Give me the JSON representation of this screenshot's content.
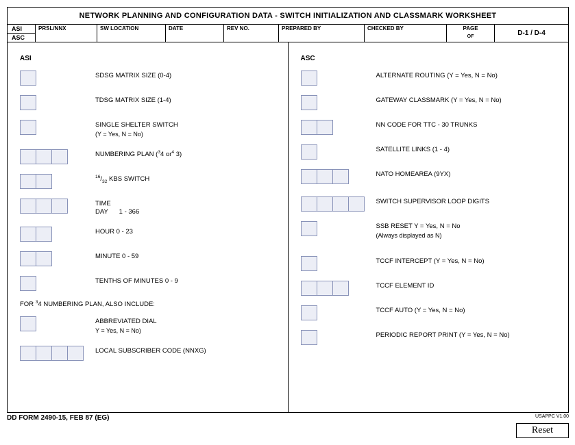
{
  "title": "NETWORK PLANNING AND CONFIGURATION DATA - SWITCH INITIALIZATION AND CLASSMARK WORKSHEET",
  "header": {
    "asi": "ASI",
    "asc": "ASC",
    "prsl": "PRSL/NNX",
    "swloc": "SW LOCATION",
    "date": "DATE",
    "rev": "REV NO.",
    "prep": "PREPARED BY",
    "chk": "CHECKED BY",
    "page": "PAGE",
    "of": "OF",
    "d14": "D-1 / D-4"
  },
  "left": {
    "head": "ASI",
    "rows": [
      {
        "boxes": 1,
        "label": "SDSG MATRIX SIZE (0-4)"
      },
      {
        "boxes": 1,
        "label": "TDSG MATRIX SIZE (1-4)"
      },
      {
        "boxes": 1,
        "label": "SINGLE SHELTER SWITCH",
        "sub": "(Y = Yes, N = No)"
      },
      {
        "boxes": 3,
        "label": "NUMBERING PLAN (³4 or⁴ 3)"
      },
      {
        "boxes": 2,
        "label": "¹⁶⁄₃₂ KBS SWITCH"
      },
      {
        "boxes": 3,
        "label": "TIME",
        "sub": "DAY      1 - 366",
        "pre": true
      },
      {
        "boxes": 2,
        "label": "HOUR      0 - 23"
      },
      {
        "boxes": 2,
        "label": "MINUTE   0 - 59"
      },
      {
        "boxes": 1,
        "label": "TENTHS OF MINUTES    0 - 9"
      }
    ],
    "subhead": "FOR ³4 NUMBERING PLAN, ALSO INCLUDE:",
    "rows2": [
      {
        "boxes": 1,
        "label": "ABBREVIATED DIAL",
        "sub": "Y = Yes, N = No)"
      },
      {
        "boxes": 4,
        "label": "LOCAL SUBSCRIBER CODE (NNXG)"
      }
    ]
  },
  "right": {
    "head": "ASC",
    "rows": [
      {
        "boxes": 1,
        "label": "ALTERNATE ROUTING (Y = Yes, N = No)"
      },
      {
        "boxes": 1,
        "label": "GATEWAY CLASSMARK (Y = Yes, N = No)"
      },
      {
        "boxes": 2,
        "label": "NN CODE FOR TTC - 30 TRUNKS"
      },
      {
        "boxes": 1,
        "label": "SATELLITE LINKS (1 - 4)"
      },
      {
        "boxes": 3,
        "label": "NATO HOMEAREA (9YX)"
      },
      {
        "boxes": 4,
        "label": "SWITCH SUPERVISOR LOOP DIGITS"
      },
      {
        "boxes": 1,
        "label": "SSB RESET Y = Yes, N = No",
        "sub": "(Always displayed as N)"
      },
      {
        "boxes": 1,
        "label": "TCCF INTERCEPT (Y = Yes, N = No)"
      },
      {
        "boxes": 3,
        "label": "TCCF ELEMENT ID"
      },
      {
        "boxes": 1,
        "label": "TCCF AUTO (Y = Yes, N = No)"
      },
      {
        "boxes": 1,
        "label": "PERIODIC REPORT PRINT (Y = Yes, N = No)"
      }
    ]
  },
  "footer": {
    "form": "DD FORM 2490-15, FEB 87 (EG)",
    "usappc": "USAPPC V1.00",
    "reset": "Reset"
  },
  "colors": {
    "box_fill": "#eceef6",
    "box_border": "#8892b8",
    "rule": "#000000"
  }
}
